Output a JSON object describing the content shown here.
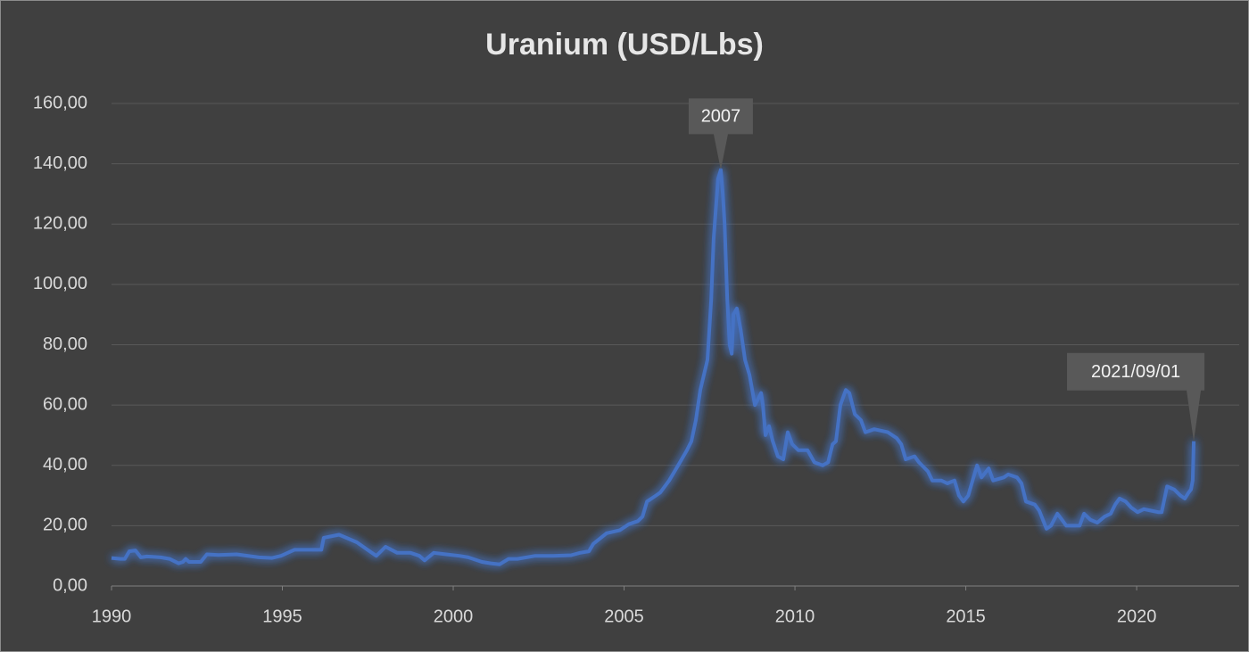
{
  "chart_data": {
    "type": "line",
    "title": "Uranium (USD/Lbs)",
    "x": [
      1990.0,
      1990.26,
      1990.39,
      1990.52,
      1990.7,
      1990.86,
      1991.04,
      1991.44,
      1991.7,
      1991.96,
      1992.09,
      1992.17,
      1992.27,
      1992.61,
      1992.79,
      1993.13,
      1993.66,
      1994.31,
      1994.7,
      1994.96,
      1995.35,
      1996.14,
      1996.21,
      1996.66,
      1997.18,
      1997.49,
      1997.75,
      1998.02,
      1998.36,
      1998.75,
      1999.01,
      1999.16,
      1999.43,
      1999.79,
      2000.18,
      2000.44,
      2000.84,
      2001.1,
      2001.36,
      2001.62,
      2001.88,
      2002.4,
      2002.92,
      2003.45,
      2003.71,
      2003.97,
      2004.1,
      2004.49,
      2004.88,
      2005.14,
      2005.4,
      2005.54,
      2005.67,
      2005.93,
      2006.06,
      2006.32,
      2006.58,
      2006.84,
      2006.97,
      2007.1,
      2007.23,
      2007.44,
      2007.55,
      2007.62,
      2007.75,
      2007.83,
      2007.89,
      2007.94,
      2008.02,
      2008.09,
      2008.15,
      2008.2,
      2008.3,
      2008.41,
      2008.54,
      2008.67,
      2008.83,
      2009.01,
      2009.06,
      2009.14,
      2009.24,
      2009.35,
      2009.5,
      2009.66,
      2009.79,
      2009.92,
      2010.1,
      2010.37,
      2010.57,
      2010.81,
      2010.97,
      2011.1,
      2011.2,
      2011.33,
      2011.49,
      2011.59,
      2011.75,
      2011.93,
      2012.06,
      2012.32,
      2012.72,
      2012.98,
      2013.11,
      2013.24,
      2013.5,
      2013.63,
      2013.89,
      2014.02,
      2014.28,
      2014.46,
      2014.67,
      2014.8,
      2014.93,
      2015.07,
      2015.2,
      2015.33,
      2015.46,
      2015.67,
      2015.8,
      2016.11,
      2016.24,
      2016.5,
      2016.63,
      2016.76,
      2017.02,
      2017.15,
      2017.36,
      2017.49,
      2017.68,
      2017.81,
      2017.94,
      2018.33,
      2018.46,
      2018.64,
      2018.85,
      2019.06,
      2019.24,
      2019.37,
      2019.5,
      2019.68,
      2019.84,
      2020.03,
      2020.21,
      2020.42,
      2020.63,
      2020.73,
      2020.89,
      2021.1,
      2021.28,
      2021.41,
      2021.52,
      2021.59,
      2021.64,
      2021.67
    ],
    "values": [
      9.3,
      9,
      9,
      11.5,
      11.8,
      9.5,
      9.8,
      9.5,
      9,
      7.5,
      8,
      9,
      8,
      8,
      10.5,
      10.3,
      10.5,
      9.5,
      9.3,
      10,
      12,
      12,
      16,
      17,
      14.5,
      12,
      10,
      13,
      11,
      11,
      10,
      8.5,
      11,
      10.5,
      10,
      9.5,
      8,
      7.5,
      7.2,
      9,
      9,
      10,
      10,
      10.2,
      11,
      11.5,
      14,
      17.5,
      18.5,
      20.5,
      21.5,
      23,
      28,
      30,
      31,
      35,
      40,
      45,
      48,
      55,
      65,
      75,
      95,
      115,
      135,
      138,
      130,
      120,
      95,
      80,
      77,
      90,
      92,
      85,
      75,
      70,
      60,
      64,
      60,
      50,
      53,
      48,
      43,
      42,
      51,
      47,
      45,
      45,
      41,
      40,
      41,
      47,
      48,
      60,
      65,
      64,
      57,
      55,
      51,
      52,
      51,
      49,
      47,
      42,
      43,
      41,
      38,
      35,
      35,
      34,
      35,
      30,
      28,
      30,
      35,
      40,
      36,
      39,
      35,
      36,
      37,
      36,
      34,
      28,
      27,
      25,
      19,
      20,
      24,
      22,
      20,
      20,
      24,
      22,
      21,
      23,
      24,
      27,
      29,
      28,
      26,
      24.5,
      25.5,
      25,
      24.5,
      24.5,
      33,
      32,
      30,
      29,
      31,
      32,
      35,
      48
    ],
    "color": "#4472c4",
    "xlim": [
      1990,
      2023
    ],
    "xticks": [
      1990,
      1995,
      2000,
      2005,
      2010,
      2015,
      2020
    ],
    "ylim": [
      0,
      160
    ],
    "yticks": [
      {
        "value": 0,
        "label": "0,00"
      },
      {
        "value": 20,
        "label": "20,00"
      },
      {
        "value": 40,
        "label": "40,00"
      },
      {
        "value": 60,
        "label": "60,00"
      },
      {
        "value": 80,
        "label": "80,00"
      },
      {
        "value": 100,
        "label": "100,00"
      },
      {
        "value": 120,
        "label": "120,00"
      },
      {
        "value": 140,
        "label": "140,00"
      },
      {
        "value": 160,
        "label": "160,00"
      }
    ],
    "grid": true,
    "annotations": [
      {
        "text": "2007",
        "x": 2007.83,
        "y": 138
      },
      {
        "text": "2021/09/01",
        "x": 2021.67,
        "y": 48
      }
    ]
  }
}
